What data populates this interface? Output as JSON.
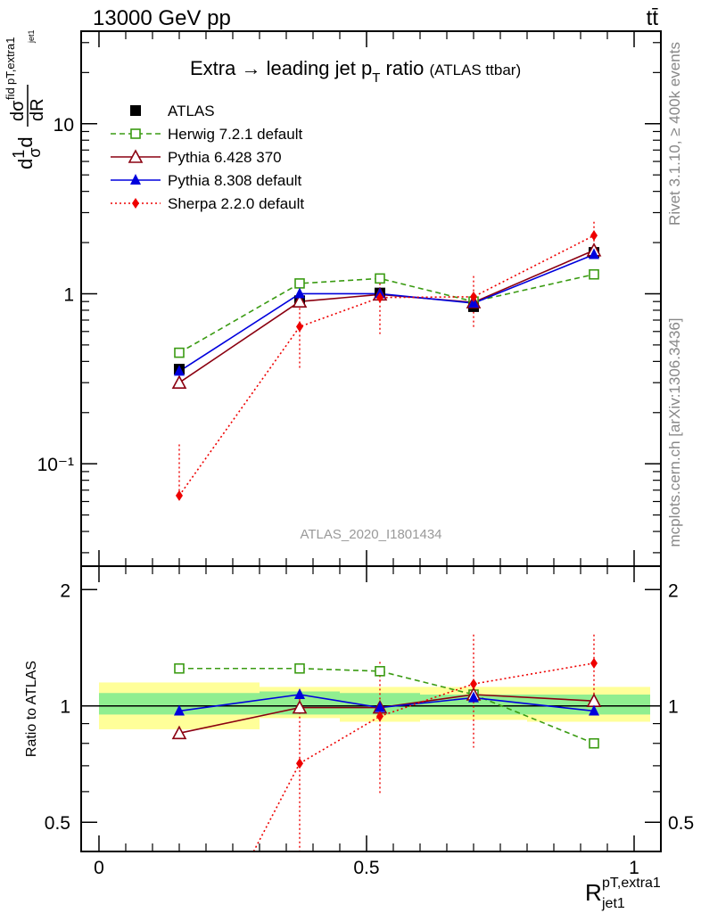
{
  "header": {
    "beam": "13000 GeV pp",
    "process": "tt̄",
    "analysis_id": "ATLAS_2020_I1801434",
    "rivet_info": "Rivet 3.1.10, ≥ 400k events",
    "source_info": "mcplots.cern.ch [arXiv:1306.3436]"
  },
  "chart_data": [
    {
      "type": "line",
      "panel": "main",
      "title_main": "Extra → leading jet p",
      "title_sub": "T",
      "title_tail": " ratio",
      "title_extra": "(ATLAS ttbar)",
      "ylabel": "(1/σ) dσ^fid/dR^pT,extra1_jet1",
      "yscale": "log",
      "ylim": [
        0.025,
        35
      ],
      "xlim": [
        -0.0333,
        1.05
      ],
      "y_ticks": [
        "10",
        "1",
        "10⁻¹"
      ],
      "x": [
        0.15,
        0.375,
        0.525,
        0.7,
        0.925
      ],
      "xerr": [
        [
          0.0,
          0.3
        ],
        [
          0.3,
          0.45
        ],
        [
          0.45,
          0.6
        ],
        [
          0.6,
          0.8
        ],
        [
          0.8,
          1.05
        ]
      ],
      "series": [
        {
          "name": "ATLAS",
          "color": "#000000",
          "marker": "square-filled",
          "dash": "none",
          "values": [
            0.36,
            0.91,
            1.01,
            0.84,
            1.75
          ]
        },
        {
          "name": "Herwig 7.2.1 default",
          "color": "#3a9b12",
          "marker": "square-open",
          "dash": "dashed",
          "values": [
            0.45,
            1.15,
            1.23,
            0.9,
            1.3
          ]
        },
        {
          "name": "Pythia 6.428 370",
          "color": "#8b0010",
          "marker": "triangle-open",
          "dash": "solid",
          "values": [
            0.3,
            0.9,
            0.99,
            0.89,
            1.8
          ]
        },
        {
          "name": "Pythia 8.308 default",
          "color": "#0000dd",
          "marker": "triangle-filled",
          "dash": "solid",
          "values": [
            0.35,
            1.0,
            1.0,
            0.88,
            1.7
          ]
        },
        {
          "name": "Sherpa 2.2.0 default",
          "color": "#ee0000",
          "marker": "diamond-filled",
          "dash": "dotted",
          "values": [
            0.065,
            0.64,
            0.95,
            0.96,
            2.2
          ],
          "yerr_low": [
            0.065,
            0.36,
            0.58,
            0.63,
            1.75
          ],
          "yerr_high": [
            0.13,
            0.93,
            1.3,
            1.27,
            2.65
          ]
        }
      ]
    },
    {
      "type": "line",
      "panel": "ratio",
      "ylabel": "Ratio to ATLAS",
      "xlabel": "R",
      "xlabel_sup": "pT,extra1",
      "xlabel_sub": "jet1",
      "yscale": "log",
      "ylim": [
        0.42,
        2.3
      ],
      "y_ticks": [
        "2",
        "1",
        "0.5"
      ],
      "x_ticks": [
        "0",
        "0.5",
        "1"
      ],
      "bands": {
        "stat_color": "#90ee90",
        "total_color": "#ffff99",
        "bins": [
          [
            0.0,
            0.3
          ],
          [
            0.3,
            0.45
          ],
          [
            0.45,
            0.6
          ],
          [
            0.6,
            0.8
          ],
          [
            0.8,
            1.05
          ]
        ],
        "inner": [
          [
            0.95,
            1.08
          ],
          [
            0.95,
            1.09
          ],
          [
            0.95,
            1.08
          ],
          [
            0.95,
            1.07
          ],
          [
            0.95,
            1.07
          ]
        ],
        "outer": [
          [
            0.87,
            1.15
          ],
          [
            0.93,
            1.12
          ],
          [
            0.91,
            1.12
          ],
          [
            0.92,
            1.12
          ],
          [
            0.91,
            1.12
          ]
        ]
      },
      "series": [
        {
          "name": "Herwig 7.2.1 default",
          "values": [
            1.25,
            1.25,
            1.23,
            1.07,
            0.8
          ]
        },
        {
          "name": "Pythia 6.428 370",
          "values": [
            0.85,
            0.99,
            0.99,
            1.07,
            1.03
          ]
        },
        {
          "name": "Pythia 8.308 default",
          "values": [
            0.97,
            1.07,
            0.99,
            1.05,
            0.97
          ]
        },
        {
          "name": "Sherpa 2.2.0 default",
          "values": [
            0.18,
            0.71,
            0.94,
            1.14,
            1.29
          ],
          "yerr_low": [
            0.1,
            0.4,
            0.59,
            0.78,
            1.0
          ],
          "yerr_high": [
            0.36,
            1.1,
            1.3,
            1.53,
            1.53
          ]
        }
      ]
    }
  ]
}
